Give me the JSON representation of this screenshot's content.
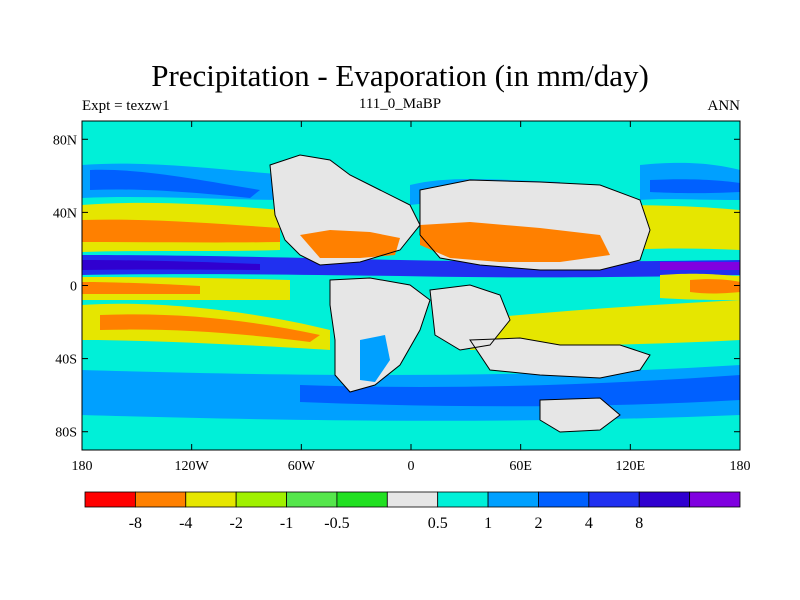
{
  "title": "Precipitation - Evaporation (in mm/day)",
  "subtitle_left": "Expt = texzw1",
  "subtitle_center": "111_0_MaBP",
  "subtitle_right": "ANN",
  "lat_ticks": [
    {
      "label": "80N",
      "lat": 80
    },
    {
      "label": "40N",
      "lat": 40
    },
    {
      "label": "0",
      "lat": 0
    },
    {
      "label": "40S",
      "lat": -40
    },
    {
      "label": "80S",
      "lat": -80
    }
  ],
  "lon_ticks": [
    {
      "label": "180",
      "lon": -180
    },
    {
      "label": "120W",
      "lon": -120
    },
    {
      "label": "60W",
      "lon": -60
    },
    {
      "label": "0",
      "lon": 0
    },
    {
      "label": "60E",
      "lon": 60
    },
    {
      "label": "120E",
      "lon": 120
    },
    {
      "label": "180",
      "lon": 180
    }
  ],
  "colorbar": {
    "colors": [
      "#ff0000",
      "#ff8000",
      "#e6e600",
      "#a0f000",
      "#55e64b",
      "#21e021",
      "#e6e6e6",
      "#00f0d8",
      "#00a0ff",
      "#0060ff",
      "#2030f0",
      "#3000d0",
      "#8000e0"
    ],
    "labels": [
      "-8",
      "-4",
      "-2",
      "-1",
      "-0.5",
      "0.5",
      "1",
      "2",
      "4",
      "8"
    ]
  },
  "colors": {
    "land": "#e6e6e6",
    "deep_ocean": "#00f0d8"
  }
}
